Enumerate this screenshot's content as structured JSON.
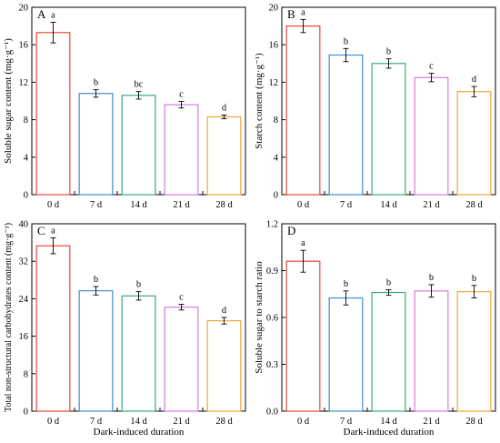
{
  "figure": {
    "shared_xlabel": "Dark-induced duration",
    "bar_colors": [
      "#e8453c",
      "#3b8fd4",
      "#3aa87a",
      "#d57be0",
      "#e8a93a"
    ]
  },
  "chart_data": [
    {
      "type": "bar",
      "panel": "A",
      "categories": [
        "0 d",
        "7 d",
        "14 d",
        "21 d",
        "28 d"
      ],
      "values": [
        17.3,
        10.8,
        10.6,
        9.6,
        8.3
      ],
      "errors": [
        1.1,
        0.4,
        0.4,
        0.35,
        0.2
      ],
      "letters": [
        "a",
        "b",
        "bc",
        "c",
        "d"
      ],
      "ylabel": "Soluble sugar content (mg·g⁻¹)",
      "xlabel": "",
      "ylim": [
        0,
        20
      ],
      "yticks": [
        0,
        4,
        8,
        12,
        16,
        20
      ]
    },
    {
      "type": "bar",
      "panel": "B",
      "categories": [
        "0 d",
        "7 d",
        "14 d",
        "21 d",
        "28 d"
      ],
      "values": [
        18.0,
        14.9,
        14.0,
        12.5,
        11.0
      ],
      "errors": [
        0.7,
        0.7,
        0.5,
        0.45,
        0.55
      ],
      "letters": [
        "a",
        "b",
        "b",
        "c",
        "d"
      ],
      "ylabel": "Starch content (mg·g⁻¹)",
      "xlabel": "",
      "ylim": [
        0,
        20
      ],
      "yticks": [
        0,
        4,
        8,
        12,
        16,
        20
      ]
    },
    {
      "type": "bar",
      "panel": "C",
      "categories": [
        "0 d",
        "7 d",
        "14 d",
        "21 d",
        "28 d"
      ],
      "values": [
        35.3,
        25.7,
        24.6,
        22.2,
        19.3
      ],
      "errors": [
        1.7,
        0.9,
        0.9,
        0.6,
        0.7
      ],
      "letters": [
        "a",
        "b",
        "b",
        "c",
        "d"
      ],
      "ylabel": "Total non-structural carbohydrates content (mg·g⁻¹)",
      "xlabel": "Dark-induced duration",
      "ylim": [
        0,
        40
      ],
      "yticks": [
        0,
        8,
        16,
        24,
        32,
        40
      ]
    },
    {
      "type": "bar",
      "panel": "D",
      "categories": [
        "0 d",
        "7 d",
        "14 d",
        "21 d",
        "28 d"
      ],
      "values": [
        0.96,
        0.725,
        0.76,
        0.77,
        0.765
      ],
      "errors": [
        0.07,
        0.045,
        0.018,
        0.04,
        0.04
      ],
      "letters": [
        "a",
        "b",
        "b",
        "b",
        "b"
      ],
      "ylabel": "Soluble sugar to starch ratio",
      "xlabel": "Dark-induced duration",
      "ylim": [
        0,
        1.2
      ],
      "yticks": [
        0,
        0.3,
        0.6,
        0.9,
        1.2
      ],
      "ytick_labels": [
        "0.0",
        "0.3",
        "0.6",
        "0.9",
        "1.2"
      ]
    }
  ]
}
